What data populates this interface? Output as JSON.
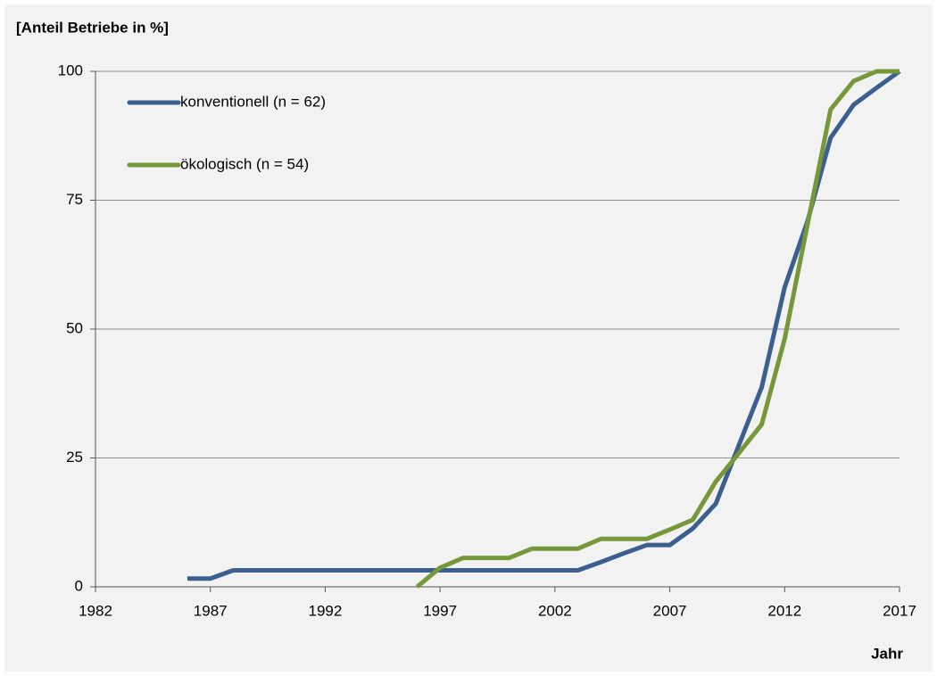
{
  "chart_data": {
    "type": "line",
    "y_axis_label": "[Anteil Betriebe in %]",
    "x_axis_label": "Jahr",
    "x": [
      1986,
      1987,
      1988,
      1989,
      1990,
      1991,
      1992,
      1993,
      1994,
      1995,
      1996,
      1997,
      1998,
      1999,
      2000,
      2001,
      2002,
      2003,
      2004,
      2005,
      2006,
      2007,
      2008,
      2009,
      2010,
      2011,
      2012,
      2013,
      2014,
      2015,
      2016,
      2017
    ],
    "series": [
      {
        "name": "konventionell (n = 62)",
        "color": "#3b5f8f",
        "values": [
          1.6,
          1.6,
          3.2,
          3.2,
          3.2,
          3.2,
          3.2,
          3.2,
          3.2,
          3.2,
          3.2,
          3.2,
          3.2,
          3.2,
          3.2,
          3.2,
          3.2,
          3.2,
          4.8,
          6.5,
          8.1,
          8.1,
          11.3,
          16.1,
          27.4,
          38.7,
          58.1,
          71.0,
          87.1,
          93.5,
          96.8,
          100
        ]
      },
      {
        "name": "ökologisch (n = 54)",
        "color": "#76973a",
        "values": [
          null,
          null,
          null,
          null,
          null,
          null,
          null,
          null,
          null,
          null,
          0,
          3.7,
          5.6,
          5.6,
          5.6,
          7.4,
          7.4,
          7.4,
          9.3,
          9.3,
          9.3,
          11.1,
          13.0,
          20.4,
          25.9,
          31.5,
          48.1,
          70.4,
          92.6,
          98.1,
          100,
          100
        ]
      }
    ],
    "xlim": [
      1982,
      2017
    ],
    "xticks": [
      1982,
      1987,
      1992,
      1997,
      2002,
      2007,
      2012,
      2017
    ],
    "ylim": [
      0,
      100
    ],
    "yticks": [
      0,
      25,
      50,
      75,
      100
    ],
    "grid": true,
    "legend": "upper left"
  }
}
